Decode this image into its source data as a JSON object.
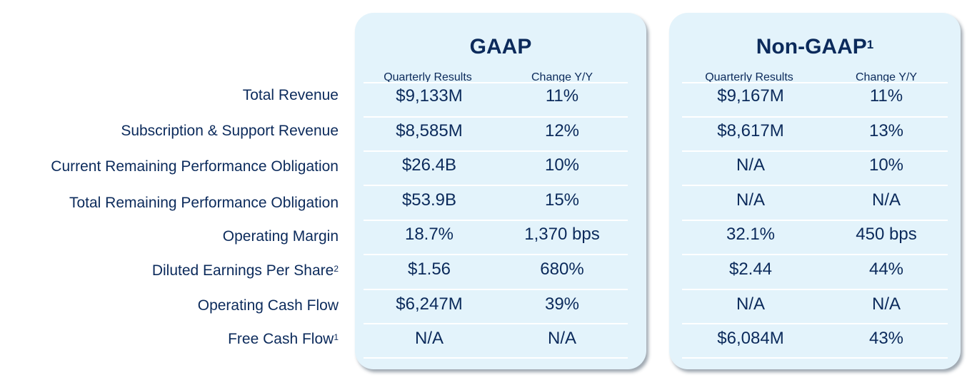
{
  "row_labels": [
    {
      "text": "Total Revenue",
      "sup": ""
    },
    {
      "text": "Subscription & Support Revenue",
      "sup": ""
    },
    {
      "text": "Current Remaining Performance Obligation",
      "sup": ""
    },
    {
      "text": "Total Remaining Performance Obligation",
      "sup": ""
    },
    {
      "text": "Operating Margin",
      "sup": ""
    },
    {
      "text": "Diluted Earnings Per Share",
      "sup": "2"
    },
    {
      "text": "Operating Cash Flow",
      "sup": ""
    },
    {
      "text": "Free Cash Flow",
      "sup": "1"
    }
  ],
  "gaap": {
    "title": "GAAP",
    "title_sup": "",
    "col1_header": "Quarterly Results",
    "col2_header": "Change Y/Y",
    "rows": [
      [
        "$9,133M",
        "11%"
      ],
      [
        "$8,585M",
        "12%"
      ],
      [
        "$26.4B",
        "10%"
      ],
      [
        "$53.9B",
        "15%"
      ],
      [
        "18.7%",
        "1,370 bps"
      ],
      [
        "$1.56",
        "680%"
      ],
      [
        "$6,247M",
        "39%"
      ],
      [
        "N/A",
        "N/A"
      ]
    ]
  },
  "non_gaap": {
    "title": "Non-GAAP",
    "title_sup": "1",
    "col1_header": "Quarterly Results",
    "col2_header": "Change Y/Y",
    "rows": [
      [
        "$9,167M",
        "11%"
      ],
      [
        "$8,617M",
        "13%"
      ],
      [
        "N/A",
        "10%"
      ],
      [
        "N/A",
        "N/A"
      ],
      [
        "32.1%",
        "450 bps"
      ],
      [
        "$2.44",
        "44%"
      ],
      [
        "N/A",
        "N/A"
      ],
      [
        "$6,084M",
        "43%"
      ]
    ]
  },
  "colors": {
    "text": "#0b2a5b",
    "card_bg": "#e3f3fb",
    "divider": "#ffffff"
  }
}
